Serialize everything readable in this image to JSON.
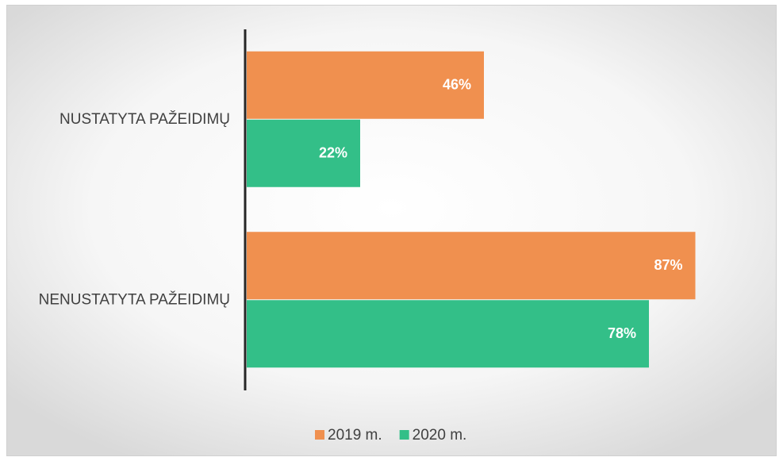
{
  "chart_data": {
    "type": "bar",
    "orientation": "horizontal",
    "categories": [
      "NUSTATYTA PAŽEIDIMŲ",
      "NENUSTATYTA PAŽEIDIMŲ"
    ],
    "series": [
      {
        "name": "2019 m.",
        "color": "#f0904f",
        "values": [
          46,
          87
        ],
        "value_labels": [
          "46%",
          "87%"
        ]
      },
      {
        "name": "2020 m.",
        "color": "#33bf88",
        "values": [
          22,
          78
        ],
        "value_labels": [
          "22%",
          "78%"
        ]
      }
    ],
    "xlim": [
      0,
      100
    ],
    "legend": "bottom"
  }
}
